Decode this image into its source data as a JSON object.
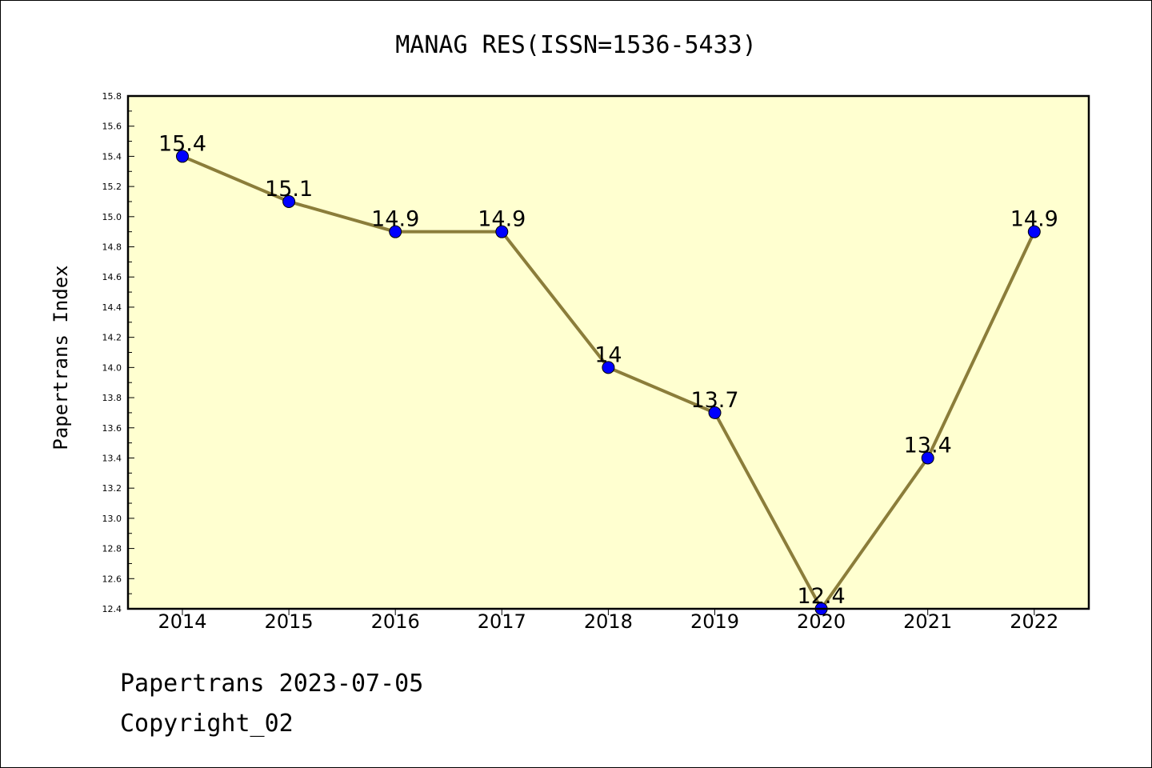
{
  "chart_data": {
    "type": "line",
    "title": "MANAG RES(ISSN=1536-5433)",
    "ylabel": "Papertrans Index",
    "xlabel": "",
    "categories": [
      "2014",
      "2015",
      "2016",
      "2017",
      "2018",
      "2019",
      "2020",
      "2021",
      "2022"
    ],
    "values": [
      15.4,
      15.1,
      14.9,
      14.9,
      14.0,
      13.7,
      12.4,
      13.4,
      14.9
    ],
    "data_labels": [
      "15.4",
      "15.1",
      "14.9",
      "14.9",
      "14",
      "13.7",
      "12.4",
      "13.4",
      "14.9"
    ],
    "ylim": [
      12.4,
      15.8
    ],
    "yticks": [
      "12.4",
      "12.6",
      "12.8",
      "13.0",
      "13.2",
      "13.4",
      "13.6",
      "13.8",
      "14.0",
      "14.2",
      "14.4",
      "14.6",
      "14.8",
      "15.0",
      "15.2",
      "15.4",
      "15.6",
      "15.8"
    ],
    "grid": false,
    "colors": {
      "plot_background": "#ffffd0",
      "line": "#8b7d3a",
      "marker": "#0000ff"
    }
  },
  "footer": {
    "line1": "Papertrans 2023-07-05",
    "line2": "Copyright_02"
  }
}
